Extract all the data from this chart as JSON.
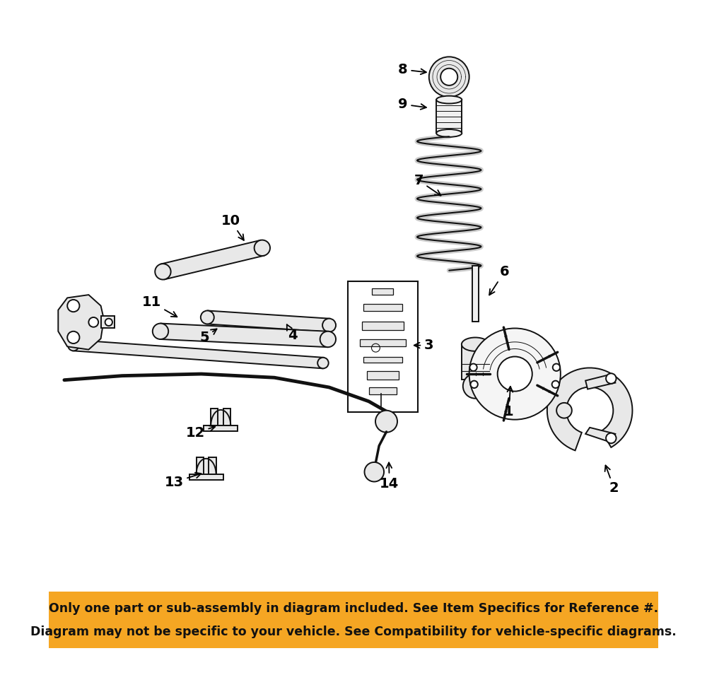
{
  "bg_color": "#ffffff",
  "footer_color": "#f5a623",
  "footer_text_line1": "Only one part or sub-assembly in diagram included. See Item Specifics for Reference #.",
  "footer_text_line2": "Diagram may not be specific to your vehicle. See Compatibility for vehicle-specific diagrams.",
  "footer_text_color": "#111111",
  "footer_font_size": 12.5,
  "figsize": [
    10.0,
    9.72
  ],
  "dpi": 100,
  "part_color": "#111111",
  "fill_color": "#e8e8e8",
  "label_positions": {
    "1": [
      0.755,
      0.388,
      0.758,
      0.435
    ],
    "2": [
      0.928,
      0.262,
      0.912,
      0.305
    ],
    "3": [
      0.624,
      0.497,
      0.594,
      0.497
    ],
    "4": [
      0.4,
      0.513,
      0.388,
      0.536
    ],
    "5": [
      0.255,
      0.51,
      0.28,
      0.527
    ],
    "6": [
      0.748,
      0.618,
      0.72,
      0.575
    ],
    "7": [
      0.607,
      0.768,
      0.648,
      0.74
    ],
    "8": [
      0.581,
      0.95,
      0.625,
      0.945
    ],
    "9": [
      0.581,
      0.893,
      0.625,
      0.887
    ],
    "10": [
      0.298,
      0.702,
      0.323,
      0.665
    ],
    "11": [
      0.168,
      0.568,
      0.215,
      0.541
    ],
    "12": [
      0.24,
      0.353,
      0.278,
      0.365
    ],
    "13": [
      0.205,
      0.272,
      0.255,
      0.288
    ],
    "14": [
      0.559,
      0.27,
      0.558,
      0.31
    ]
  }
}
